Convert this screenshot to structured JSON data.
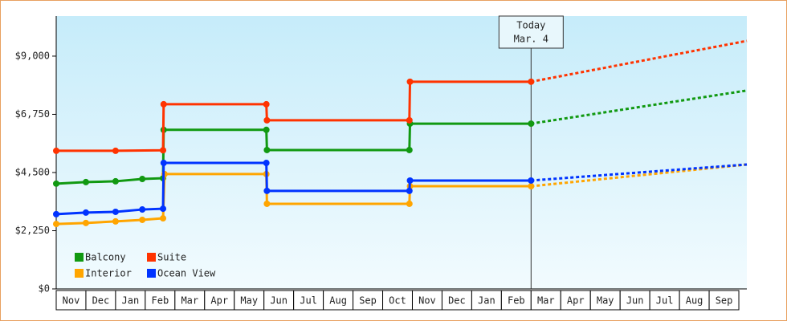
{
  "chart_data": {
    "type": "line",
    "categories": [
      "Nov",
      "Dec",
      "Jan",
      "Feb",
      "Mar",
      "Apr",
      "May",
      "Jun",
      "Jul",
      "Aug",
      "Sep",
      "Oct",
      "Nov",
      "Dec",
      "Jan",
      "Feb",
      "Mar",
      "Apr",
      "May",
      "Jun",
      "Jul",
      "Aug",
      "Sep"
    ],
    "xlim": [
      0,
      23.27
    ],
    "ylim": [
      0,
      10550
    ],
    "yticks": [
      {
        "value": 0,
        "label": "$0"
      },
      {
        "value": 2250,
        "label": "$2,250"
      },
      {
        "value": 4500,
        "label": "$4,500"
      },
      {
        "value": 6750,
        "label": "$6,750"
      },
      {
        "value": 9000,
        "label": "$9,000"
      }
    ],
    "today": {
      "x": 16,
      "label": [
        "Today",
        "Mar. 4"
      ]
    },
    "series": [
      {
        "name": "Balcony",
        "color": "#119911",
        "x": [
          0,
          1,
          2,
          2.9,
          3.6,
          3.62,
          7.08,
          7.1,
          11.9,
          11.92,
          16
        ],
        "values": [
          4070,
          4130,
          4160,
          4250,
          4280,
          6150,
          6150,
          5370,
          5370,
          6390,
          6390
        ],
        "projection": {
          "x": 23.27,
          "value": 7670
        }
      },
      {
        "name": "Suite",
        "color": "#ff3300",
        "x": [
          0,
          2,
          3.6,
          3.62,
          7.08,
          7.1,
          11.9,
          11.92,
          16
        ],
        "values": [
          5340,
          5340,
          5360,
          7140,
          7140,
          6520,
          6520,
          8010,
          8010
        ],
        "projection": {
          "x": 23.27,
          "value": 9590
        }
      },
      {
        "name": "Interior",
        "color": "#ffa500",
        "x": [
          0,
          1,
          2,
          2.9,
          3.6,
          3.65,
          7.08,
          7.1,
          11.9,
          11.92,
          16
        ],
        "values": [
          2510,
          2550,
          2610,
          2670,
          2730,
          4440,
          4440,
          3290,
          3290,
          3970,
          3970
        ],
        "projection": {
          "x": 23.27,
          "value": 4810
        }
      },
      {
        "name": "Ocean View",
        "color": "#0033ff",
        "x": [
          0,
          1,
          2,
          2.9,
          3.6,
          3.62,
          7.08,
          7.1,
          11.9,
          11.92,
          16
        ],
        "values": [
          2890,
          2950,
          2980,
          3070,
          3100,
          4870,
          4870,
          3790,
          3790,
          4190,
          4190
        ],
        "projection": {
          "x": 23.27,
          "value": 4810
        }
      }
    ]
  }
}
